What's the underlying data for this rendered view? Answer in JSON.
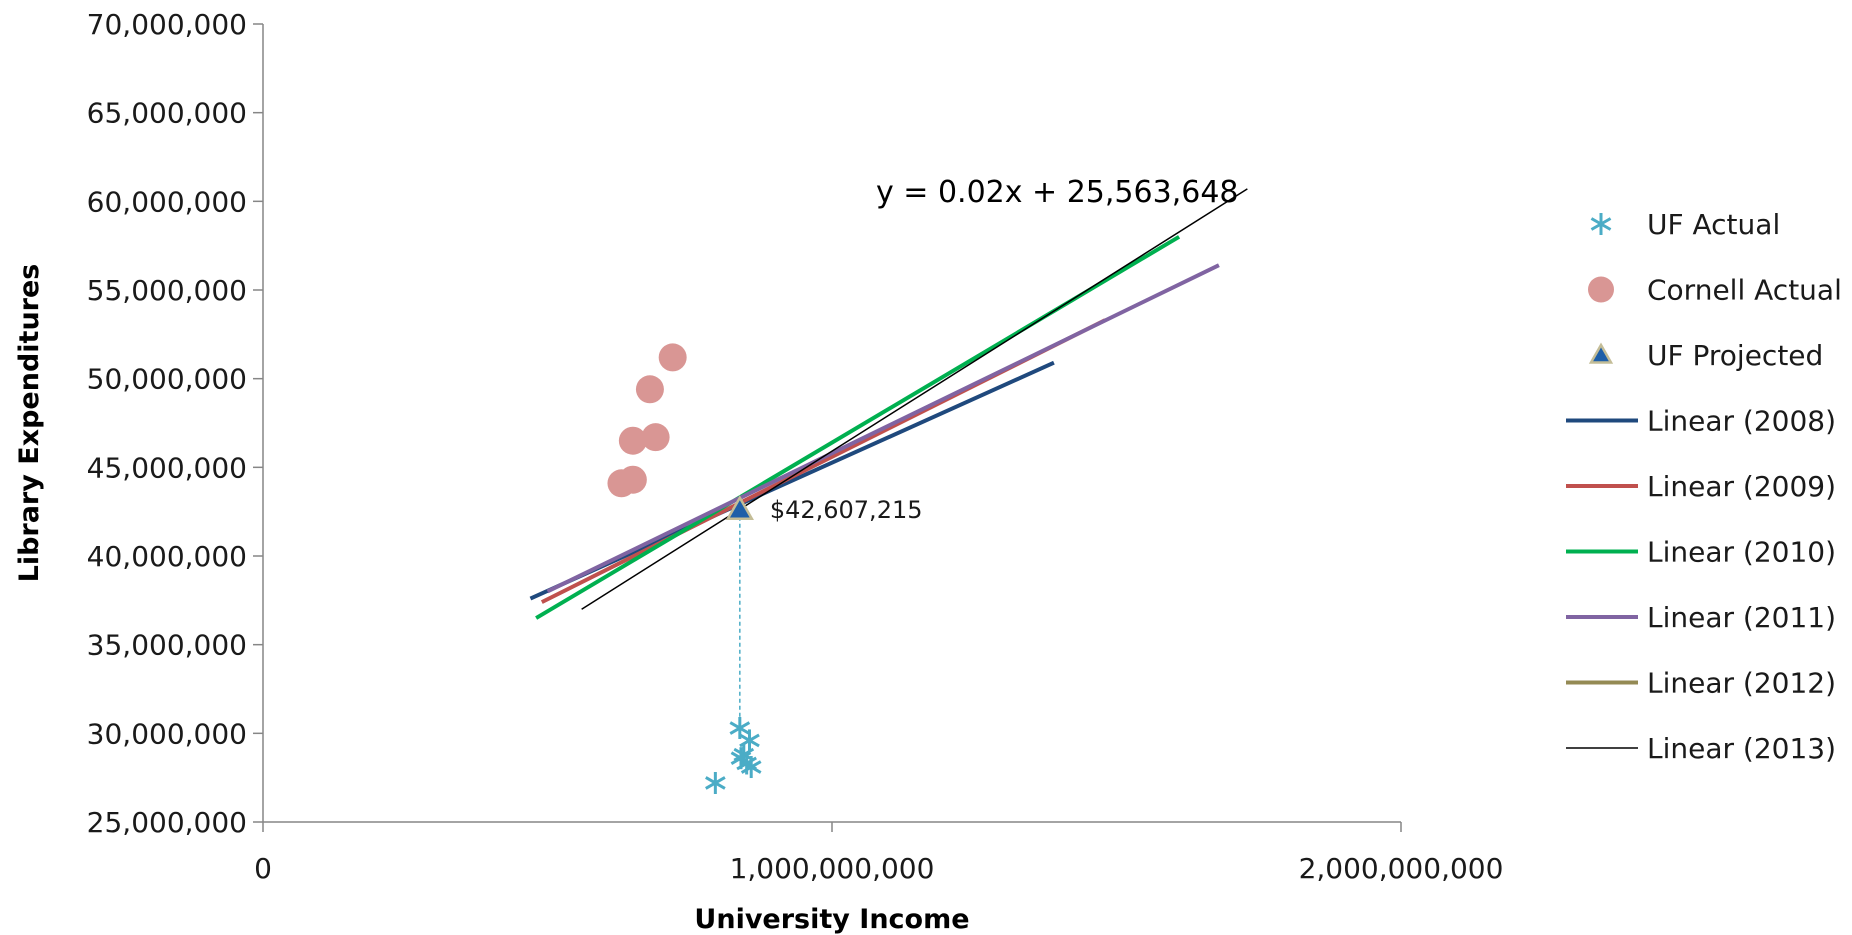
{
  "chart_data": {
    "type": "scatter",
    "xlabel": "University Income",
    "ylabel": "Library Expenditures",
    "xlim": [
      0,
      2000000000
    ],
    "ylim": [
      25000000,
      70000000
    ],
    "x_ticks": [
      0,
      1000000000,
      2000000000
    ],
    "x_tick_labels": [
      "0",
      "1,000,000,000",
      "2,000,000,000"
    ],
    "y_ticks": [
      25000000,
      30000000,
      35000000,
      40000000,
      45000000,
      50000000,
      55000000,
      60000000,
      65000000,
      70000000
    ],
    "y_tick_labels": [
      "25,000,000",
      "30,000,000",
      "35,000,000",
      "40,000,000",
      "45,000,000",
      "50,000,000",
      "55,000,000",
      "60,000,000",
      "65,000,000",
      "70,000,000"
    ],
    "grid": false,
    "legend_position": "right",
    "series": [
      {
        "name": "UF Actual",
        "kind": "points",
        "marker": "asterisk",
        "color": "#4BACC6",
        "points": [
          [
            795000000,
            27200000
          ],
          [
            838000000,
            30300000
          ],
          [
            855000000,
            29600000
          ],
          [
            845000000,
            28800000
          ],
          [
            850000000,
            28300000
          ],
          [
            858000000,
            28100000
          ],
          [
            840000000,
            28600000
          ]
        ]
      },
      {
        "name": "Cornell Actual",
        "kind": "points",
        "marker": "circle",
        "color": "#D99694",
        "points": [
          [
            630000000,
            44100000
          ],
          [
            650000000,
            44300000
          ],
          [
            650000000,
            46500000
          ],
          [
            680000000,
            49400000
          ],
          [
            690000000,
            46700000
          ],
          [
            720000000,
            51200000
          ]
        ]
      },
      {
        "name": "UF Projected",
        "kind": "points",
        "marker": "triangle",
        "color": "#1F5FA8",
        "edge_color": "#C4BD97",
        "points": [
          [
            838000000,
            42607215
          ]
        ]
      },
      {
        "name": "Linear (2008)",
        "kind": "line",
        "color": "#1F497D",
        "stroke": "thick",
        "points": [
          [
            470000000,
            37600000
          ],
          [
            1390000000,
            50900000
          ]
        ]
      },
      {
        "name": "Linear (2009)",
        "kind": "line",
        "color": "#C0504D",
        "stroke": "thick",
        "points": [
          [
            490000000,
            37400000
          ],
          [
            1480000000,
            53300000
          ]
        ]
      },
      {
        "name": "Linear (2010)",
        "kind": "line",
        "color": "#00B050",
        "stroke": "thick",
        "points": [
          [
            480000000,
            36500000
          ],
          [
            1610000000,
            58000000
          ]
        ]
      },
      {
        "name": "Linear (2011)",
        "kind": "line",
        "color": "#8064A2",
        "stroke": "thick",
        "points": [
          [
            500000000,
            38000000
          ],
          [
            1680000000,
            56400000
          ]
        ]
      },
      {
        "name": "Linear (2012)",
        "kind": "line",
        "color": "#948A54",
        "stroke": "thick",
        "points": []
      },
      {
        "name": "Linear (2013)",
        "kind": "line",
        "color": "#000000",
        "stroke": "thin",
        "points": [
          [
            560000000,
            37000000
          ],
          [
            1730000000,
            60700000
          ]
        ]
      }
    ],
    "annotations": [
      {
        "text": "y = 0.02x + 25,563,648",
        "kind": "equation",
        "x": 1000000000,
        "y": 60000000
      },
      {
        "text": "$42,607,215",
        "kind": "value-label",
        "x": 838000000,
        "y": 42607215
      }
    ],
    "drop_line": {
      "x": 838000000,
      "y_from": 42607215,
      "y_to": 30300000,
      "color": "#4BACC6",
      "style": "dotted"
    }
  }
}
